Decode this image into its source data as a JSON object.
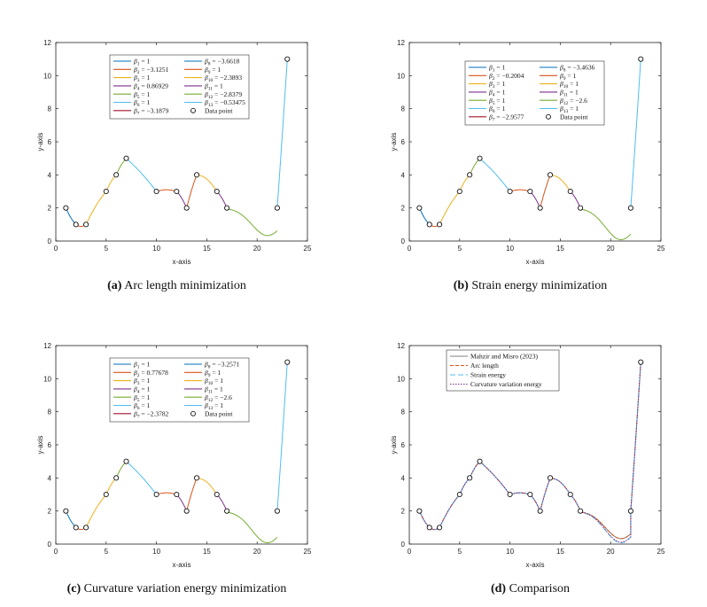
{
  "palette": [
    "#0072BD",
    "#D95319",
    "#EDB120",
    "#7E2F8E",
    "#77AC30",
    "#4DBEEE",
    "#A2142F"
  ],
  "chart_data": [
    {
      "type": "line",
      "label": "(a)",
      "caption": "Arc length minimization",
      "xlabel": "x-axis",
      "ylabel": "y-axis",
      "xlim": [
        0,
        25
      ],
      "ylim": [
        0,
        12
      ],
      "xticks": [
        0,
        5,
        10,
        15,
        20,
        25
      ],
      "yticks": [
        0,
        2,
        4,
        6,
        8,
        10,
        12
      ],
      "points": [
        [
          1,
          2
        ],
        [
          2,
          1
        ],
        [
          3,
          1
        ],
        [
          5,
          3
        ],
        [
          6,
          4
        ],
        [
          7,
          5
        ],
        [
          10,
          3
        ],
        [
          12,
          3
        ],
        [
          13,
          2
        ],
        [
          14,
          4
        ],
        [
          16,
          3
        ],
        [
          17,
          2
        ],
        [
          22,
          2
        ],
        [
          23,
          11
        ]
      ],
      "segment_colors": [
        0,
        1,
        2,
        2,
        4,
        5,
        1,
        3,
        1,
        2,
        3,
        4,
        5
      ],
      "bulges": [
        -0.1,
        -0.12,
        0.15,
        0.1,
        0.1,
        0.1,
        0.1,
        0.1,
        0.1,
        0.25,
        0.1,
        -0.06,
        -0.1
      ],
      "dip": 0.3,
      "legend": {
        "left": [
          "β1 = 1",
          "β2 = −3.1251",
          "β3 = 1",
          "β4 = 0.86929",
          "β5 = 1",
          "β6 = 1",
          "β7 = −3.1879"
        ],
        "right": [
          "β8 = −3.6618",
          "β9 = 1",
          "β10 = −2.3893",
          "β11 = 1",
          "β12 = −2.8379",
          "β13 = −0.53475"
        ],
        "marker": "Data point"
      }
    },
    {
      "type": "line",
      "label": "(b)",
      "caption": "Strain energy minimization",
      "xlabel": "x-axis",
      "ylabel": "y-axis",
      "xlim": [
        0,
        25
      ],
      "ylim": [
        0,
        12
      ],
      "xticks": [
        0,
        5,
        10,
        15,
        20,
        25
      ],
      "yticks": [
        0,
        2,
        4,
        6,
        8,
        10,
        12
      ],
      "points": [
        [
          1,
          2
        ],
        [
          2,
          1
        ],
        [
          3,
          1
        ],
        [
          5,
          3
        ],
        [
          6,
          4
        ],
        [
          7,
          5
        ],
        [
          10,
          3
        ],
        [
          12,
          3
        ],
        [
          13,
          2
        ],
        [
          14,
          4
        ],
        [
          16,
          3
        ],
        [
          17,
          2
        ],
        [
          22,
          2
        ],
        [
          23,
          11
        ]
      ],
      "segment_colors": [
        0,
        1,
        2,
        2,
        4,
        5,
        1,
        3,
        1,
        2,
        3,
        4,
        5
      ],
      "bulges": [
        -0.1,
        -0.12,
        0.15,
        0.1,
        0.1,
        0.1,
        0.1,
        0.1,
        0.1,
        0.25,
        0.1,
        -0.06,
        -0.1
      ],
      "dip": 0.05,
      "legend": {
        "left": [
          "β1 = 1",
          "β2 = −0.2004",
          "β3 = 1",
          "β4 = 1",
          "β5 = 1",
          "β6 = 1",
          "β7 = −2.9577"
        ],
        "right": [
          "β8 = −3.4636",
          "β9 = 1",
          "β10 = 1",
          "β11 = 1",
          "β12 = −2.6",
          "β13 = 1"
        ],
        "marker": "Data point"
      }
    },
    {
      "type": "line",
      "label": "(c)",
      "caption": "Curvature variation energy minimization",
      "xlabel": "x-axis",
      "ylabel": "y-axis",
      "xlim": [
        0,
        25
      ],
      "ylim": [
        0,
        12
      ],
      "xticks": [
        0,
        5,
        10,
        15,
        20,
        25
      ],
      "yticks": [
        0,
        2,
        4,
        6,
        8,
        10,
        12
      ],
      "points": [
        [
          1,
          2
        ],
        [
          2,
          1
        ],
        [
          3,
          1
        ],
        [
          5,
          3
        ],
        [
          6,
          4
        ],
        [
          7,
          5
        ],
        [
          10,
          3
        ],
        [
          12,
          3
        ],
        [
          13,
          2
        ],
        [
          14,
          4
        ],
        [
          16,
          3
        ],
        [
          17,
          2
        ],
        [
          22,
          2
        ],
        [
          23,
          11
        ]
      ],
      "segment_colors": [
        0,
        1,
        2,
        2,
        4,
        5,
        1,
        3,
        1,
        2,
        3,
        4,
        5
      ],
      "bulges": [
        -0.1,
        -0.12,
        0.15,
        0.1,
        0.1,
        0.1,
        0.1,
        0.1,
        0.1,
        0.25,
        0.1,
        -0.06,
        -0.1
      ],
      "dip": 0.05,
      "legend": {
        "left": [
          "β1 = 1",
          "β2 = 0.77678",
          "β3 = 1",
          "β4 = 1",
          "β5 = 1",
          "β6 = 1",
          "β7 = −2.3782"
        ],
        "right": [
          "β8 = −3.2571",
          "β9 = 1",
          "β10 = 1",
          "β11 = 1",
          "β12 = −2.6",
          "β13 = 1"
        ],
        "marker": "Data point"
      }
    },
    {
      "type": "line",
      "label": "(d)",
      "caption": "Comparison",
      "xlabel": "x-axis",
      "ylabel": "y-axis",
      "xlim": [
        0,
        25
      ],
      "ylim": [
        0,
        12
      ],
      "xticks": [
        0,
        5,
        10,
        15,
        20,
        25
      ],
      "yticks": [
        0,
        2,
        4,
        6,
        8,
        10,
        12
      ],
      "points": [
        [
          1,
          2
        ],
        [
          2,
          1
        ],
        [
          3,
          1
        ],
        [
          5,
          3
        ],
        [
          6,
          4
        ],
        [
          7,
          5
        ],
        [
          10,
          3
        ],
        [
          12,
          3
        ],
        [
          13,
          2
        ],
        [
          14,
          4
        ],
        [
          16,
          3
        ],
        [
          17,
          2
        ],
        [
          22,
          2
        ],
        [
          23,
          11
        ]
      ],
      "bulges": [
        -0.1,
        -0.12,
        0.15,
        0.1,
        0.1,
        0.1,
        0.1,
        0.1,
        0.1,
        0.25,
        0.1,
        -0.06,
        -0.1
      ],
      "series": [
        {
          "name": "Mahzir and Misro (2023)",
          "color": "#808080",
          "dash": "",
          "dip": 0.3
        },
        {
          "name": "Arc length",
          "color": "#D95319",
          "dash": "4,2",
          "dip": 0.3
        },
        {
          "name": "Strain energy",
          "color": "#4DBEEE",
          "dash": "6,3",
          "dip": 0.05
        },
        {
          "name": "Curvature variation energy",
          "color": "#7E2F8E",
          "dash": "1.5,1.5",
          "dip": 0.08
        }
      ]
    }
  ]
}
